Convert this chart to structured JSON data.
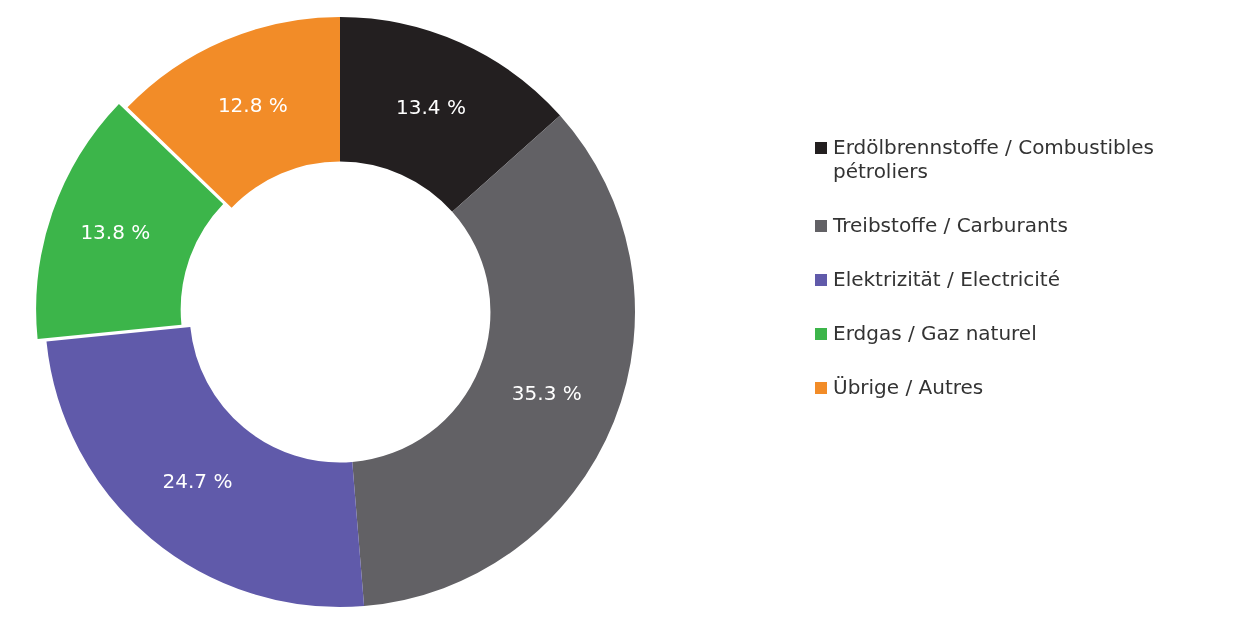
{
  "chart_data": {
    "type": "donut",
    "categories": [
      "Erdölbrennstoffe / Combustibles pétroliers",
      "Treibstoffe / Carburants",
      "Elektrizität / Electricité",
      "Erdgas / Gaz naturel",
      "Übrige / Autres"
    ],
    "values": [
      13.4,
      35.3,
      24.7,
      13.8,
      12.8
    ],
    "value_labels": [
      "13.4 %",
      "35.3 %",
      "24.7 %",
      "13.8 %",
      "12.8 %"
    ],
    "colors": [
      "#231f20",
      "#626165",
      "#605aaa",
      "#3cb54a",
      "#f28c28"
    ],
    "legend": "right"
  }
}
